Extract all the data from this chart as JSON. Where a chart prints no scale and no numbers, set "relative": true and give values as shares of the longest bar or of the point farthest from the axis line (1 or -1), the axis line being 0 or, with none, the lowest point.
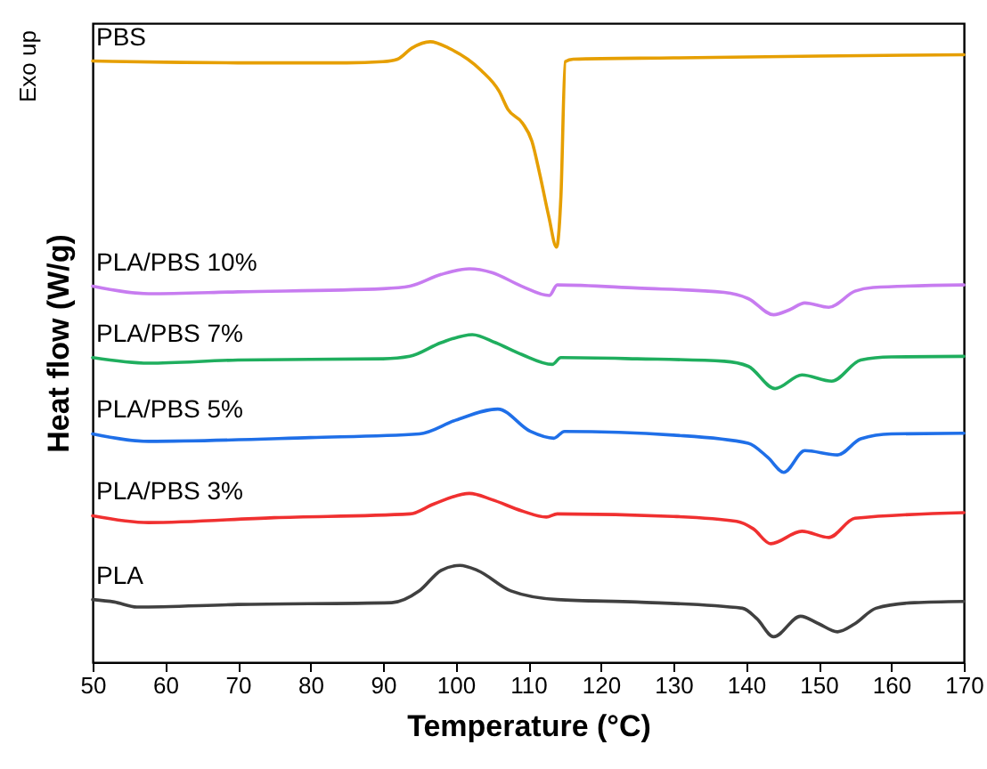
{
  "chart_data": {
    "type": "line",
    "relative": true,
    "xlabel": "Temperature (°C)",
    "ylabel": "Heat flow (W/g)",
    "annotations": [
      "Exo up"
    ],
    "grid": false,
    "marker": "none",
    "line_style": "solid",
    "xlim": [
      50,
      170
    ],
    "xticks": [
      50,
      60,
      70,
      80,
      90,
      100,
      110,
      120,
      130,
      140,
      150,
      160,
      170
    ],
    "series": [
      {
        "name": "PBS",
        "color": "#e69f00",
        "x": [
          50,
          60,
          70,
          85,
          90,
          92,
          94,
          96.5,
          99,
          103.5,
          106,
          107.2,
          109.2,
          110.5,
          111.6,
          112.8,
          113.9,
          114.5,
          115.1,
          116.2,
          130,
          150,
          170
        ],
        "values": [
          0.969,
          0.967,
          0.966,
          0.966,
          0.968,
          0.972,
          0.99,
          1.0,
          0.99,
          0.954,
          0.92,
          0.891,
          0.869,
          0.84,
          0.786,
          0.72,
          0.669,
          0.75,
          0.968,
          0.972,
          0.974,
          0.977,
          0.979
        ]
      },
      {
        "name": "PLA/PBS 10%",
        "color": "#c77cf0",
        "x": [
          50,
          57.7,
          70,
          90,
          93.7,
          98,
          101.9,
          105,
          109.1,
          112.9,
          114,
          125,
          137,
          140.3,
          143.8,
          146,
          148.1,
          151.4,
          155,
          157.5,
          170
        ],
        "values": [
          0.606,
          0.594,
          0.597,
          0.602,
          0.606,
          0.625,
          0.634,
          0.628,
          0.606,
          0.591,
          0.608,
          0.603,
          0.596,
          0.586,
          0.56,
          0.568,
          0.579,
          0.572,
          0.598,
          0.604,
          0.608
        ]
      },
      {
        "name": "PLA/PBS 7%",
        "color": "#1fae5e",
        "x": [
          50,
          57.7,
          70,
          90,
          93.7,
          98,
          102.3,
          105.5,
          109.1,
          113.3,
          114.5,
          125,
          137,
          140.3,
          144,
          147.7,
          151.8,
          155.8,
          160,
          170
        ],
        "values": [
          0.491,
          0.482,
          0.487,
          0.489,
          0.493,
          0.515,
          0.528,
          0.515,
          0.496,
          0.48,
          0.491,
          0.489,
          0.485,
          0.477,
          0.441,
          0.463,
          0.453,
          0.487,
          0.492,
          0.493
        ]
      },
      {
        "name": "PLA/PBS 5%",
        "color": "#1f6fe8",
        "x": [
          50,
          57.7,
          80,
          95,
          100,
          105.8,
          110.3,
          113.5,
          115,
          130,
          140.3,
          143,
          145.2,
          148.1,
          152.6,
          155.8,
          160,
          170
        ],
        "values": [
          0.368,
          0.356,
          0.362,
          0.368,
          0.39,
          0.408,
          0.372,
          0.361,
          0.372,
          0.366,
          0.353,
          0.33,
          0.306,
          0.341,
          0.334,
          0.36,
          0.368,
          0.369
        ]
      },
      {
        "name": "PLA/PBS 3%",
        "color": "#f03030",
        "x": [
          50,
          57.7,
          75,
          93.7,
          97,
          101.9,
          105,
          109.1,
          112.5,
          114,
          130,
          138.7,
          141,
          143.4,
          147.7,
          151.4,
          155,
          170
        ],
        "values": [
          0.236,
          0.225,
          0.233,
          0.239,
          0.255,
          0.272,
          0.262,
          0.244,
          0.234,
          0.239,
          0.235,
          0.227,
          0.215,
          0.191,
          0.211,
          0.201,
          0.232,
          0.241
        ]
      },
      {
        "name": "PLA",
        "color": "#404040",
        "x": [
          50,
          53,
          56.1,
          70,
          91.2,
          95,
          98,
          100.6,
          103,
          107.6,
          114,
          125,
          139.5,
          141.5,
          143.8,
          147.5,
          150,
          152.6,
          155,
          157.9,
          163.2,
          170
        ],
        "values": [
          0.101,
          0.097,
          0.089,
          0.093,
          0.096,
          0.115,
          0.148,
          0.156,
          0.148,
          0.115,
          0.101,
          0.097,
          0.087,
          0.07,
          0.041,
          0.074,
          0.062,
          0.049,
          0.062,
          0.087,
          0.096,
          0.098
        ]
      }
    ]
  }
}
